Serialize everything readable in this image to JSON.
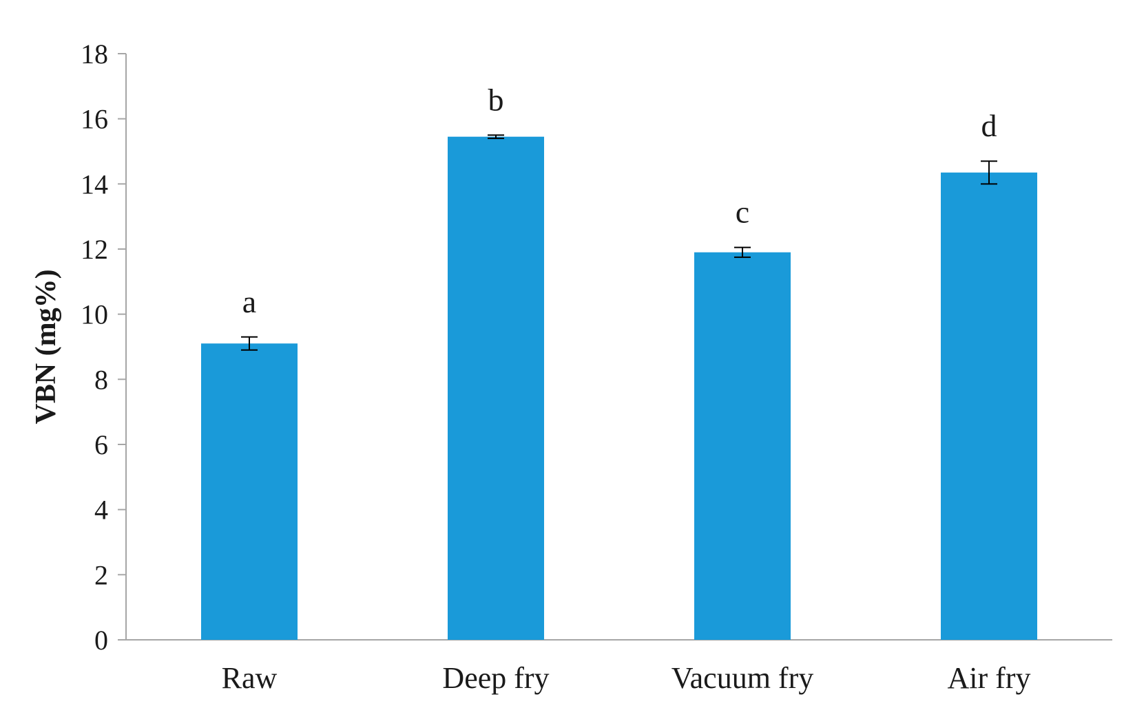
{
  "chart_data": {
    "type": "bar",
    "title": "",
    "xlabel": "",
    "ylabel": "VBN (mg%)",
    "ylim": [
      0,
      18
    ],
    "yticks": [
      0,
      2,
      4,
      6,
      8,
      10,
      12,
      14,
      16,
      18
    ],
    "categories": [
      "Raw",
      "Deep fry",
      "Vacuum fry",
      "Air fry"
    ],
    "values": [
      9.1,
      15.45,
      11.9,
      14.35
    ],
    "errors": [
      0.2,
      0.05,
      0.15,
      0.35
    ],
    "significance_labels": [
      "a",
      "b",
      "c",
      "d"
    ],
    "bar_color": "#1a9ad9",
    "axis_color": "#a6a6a6",
    "grid": false,
    "legend": "none"
  }
}
